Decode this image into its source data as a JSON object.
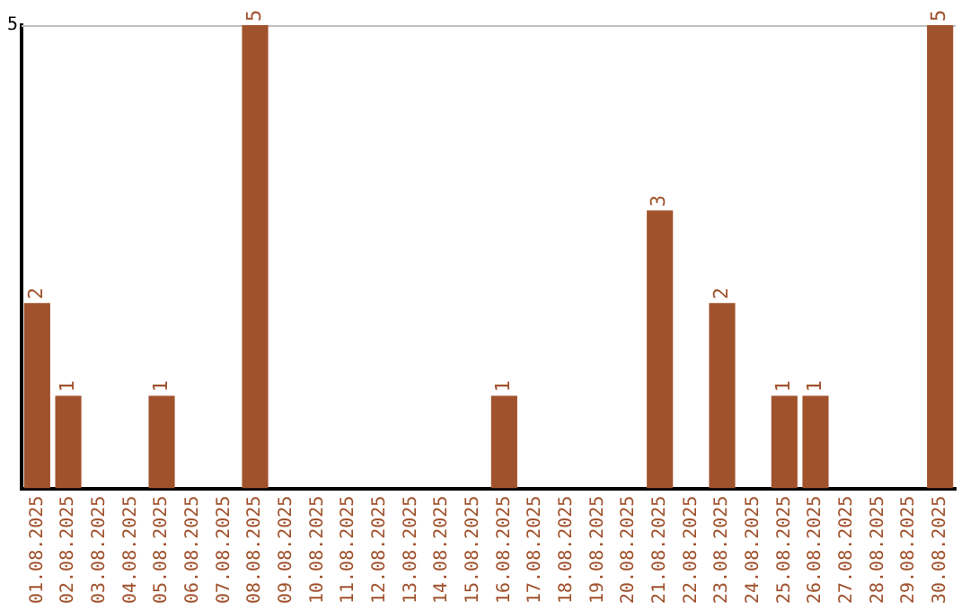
{
  "chart_data": {
    "type": "bar",
    "categories": [
      "01.08.2025",
      "02.08.2025",
      "03.08.2025",
      "04.08.2025",
      "05.08.2025",
      "06.08.2025",
      "07.08.2025",
      "08.08.2025",
      "09.08.2025",
      "10.08.2025",
      "11.08.2025",
      "12.08.2025",
      "13.08.2025",
      "14.08.2025",
      "15.08.2025",
      "16.08.2025",
      "17.08.2025",
      "18.08.2025",
      "19.08.2025",
      "20.08.2025",
      "21.08.2025",
      "22.08.2025",
      "23.08.2025",
      "24.08.2025",
      "25.08.2025",
      "26.08.2025",
      "27.08.2025",
      "28.08.2025",
      "29.08.2025",
      "30.08.2025"
    ],
    "values": [
      2,
      1,
      0,
      0,
      1,
      0,
      0,
      5,
      0,
      0,
      0,
      0,
      0,
      0,
      0,
      1,
      0,
      0,
      0,
      0,
      3,
      0,
      2,
      0,
      1,
      1,
      0,
      0,
      0,
      5
    ],
    "value_labels": [
      "2",
      "1",
      null,
      null,
      "1",
      null,
      null,
      "5",
      null,
      null,
      null,
      null,
      null,
      null,
      null,
      "1",
      null,
      null,
      null,
      null,
      "3",
      null,
      "2",
      null,
      "1",
      "1",
      null,
      null,
      null,
      "5"
    ],
    "color": "#a0522d",
    "ylim": [
      0,
      5
    ],
    "yticks": [
      5
    ],
    "legend": false
  }
}
